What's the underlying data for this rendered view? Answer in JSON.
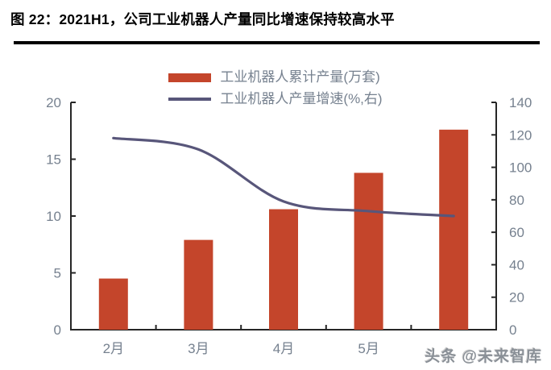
{
  "title": "图 22：2021H1，公司工业机器人产量同比增速保持较高水平",
  "watermark": "头条 @未来智库",
  "colors": {
    "bar": "#C4452B",
    "line": "#58567A",
    "axis": "#262626",
    "tick_label": "#76818F",
    "title": "#000000",
    "divider": "#000000"
  },
  "chart_data": {
    "type": "combo",
    "title": "图 22：2021H1，公司工业机器人产量同比增速保持较高水平",
    "categories": [
      "2月",
      "3月",
      "4月",
      "5月",
      ""
    ],
    "series": [
      {
        "name": "工业机器人累计产量(万套)",
        "type": "bar",
        "axis": "left",
        "color": "#C4452B",
        "values": [
          4.5,
          7.9,
          10.6,
          13.8,
          17.6
        ]
      },
      {
        "name": "工业机器人产量增速(%,右)",
        "type": "line",
        "axis": "right",
        "color": "#58567A",
        "values": [
          118,
          111,
          79,
          73,
          70
        ]
      }
    ],
    "left_axis": {
      "min": 0,
      "max": 20,
      "step": 5,
      "ticks": [
        0,
        5,
        10,
        15,
        20
      ]
    },
    "right_axis": {
      "min": 0,
      "max": 140,
      "step": 20,
      "ticks": [
        0,
        20,
        40,
        60,
        80,
        100,
        120,
        140
      ]
    },
    "grid": false,
    "legend_position": "top-center"
  }
}
